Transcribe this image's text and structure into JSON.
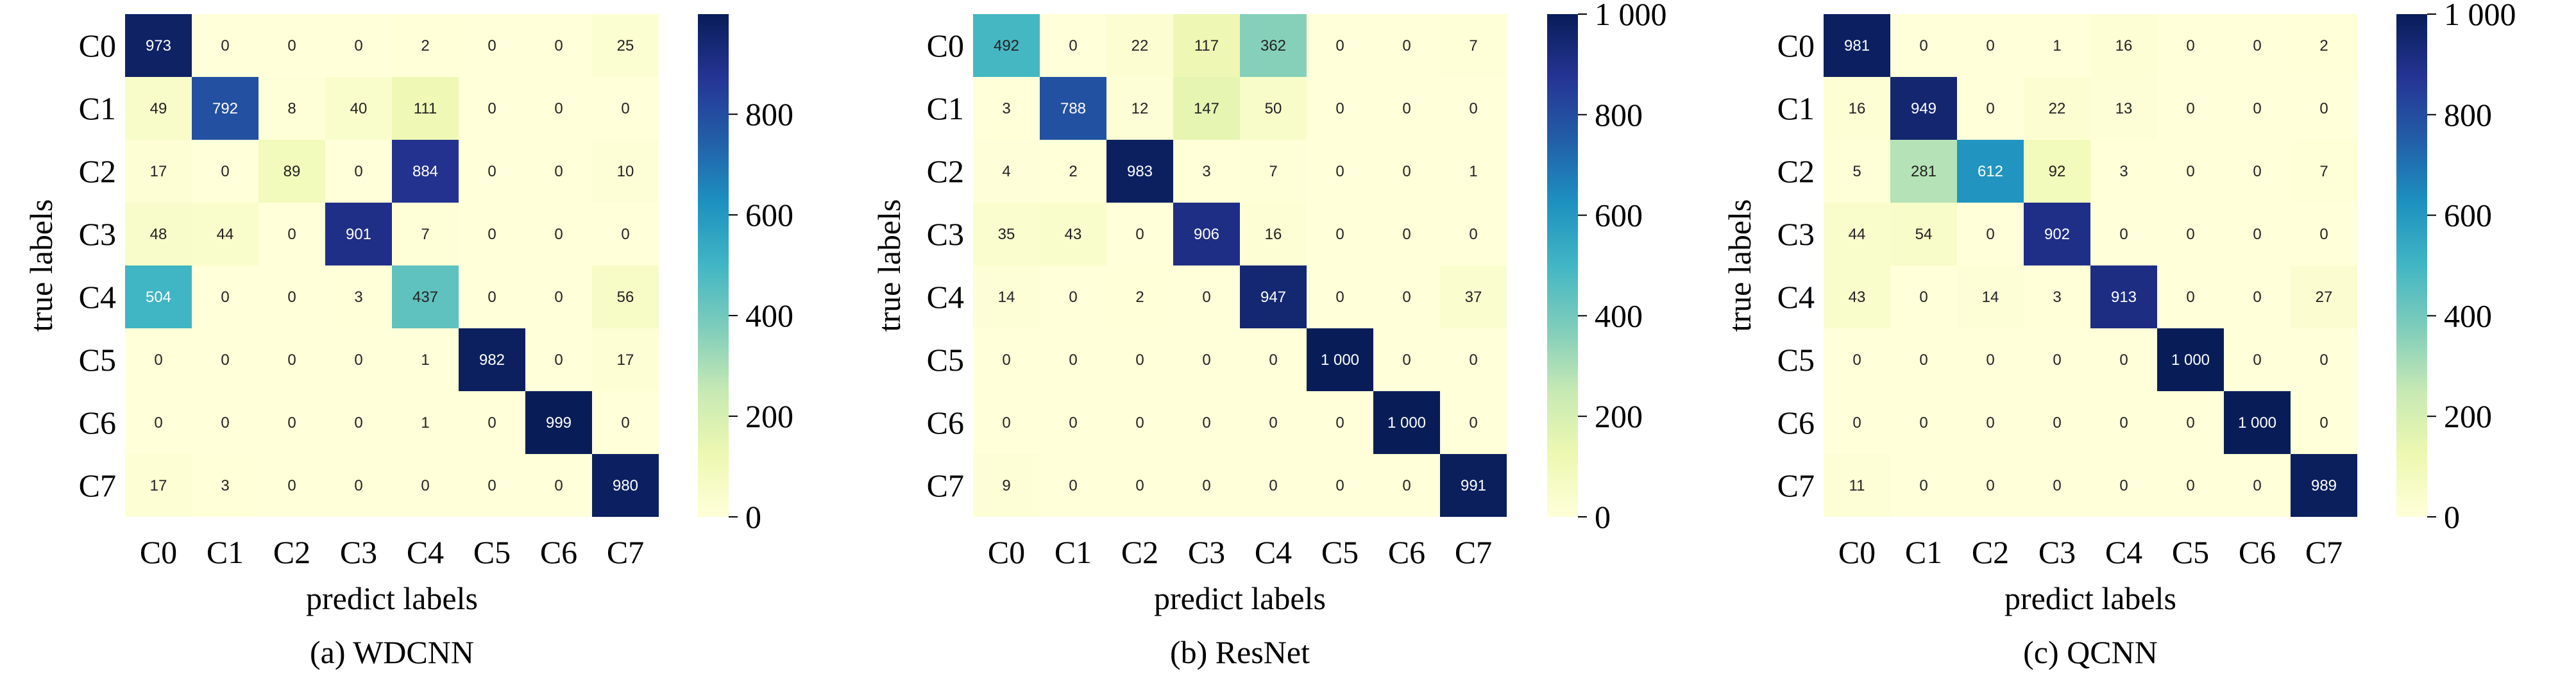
{
  "figure": {
    "colorscale": [
      "#ffffd9",
      "#edf8b1",
      "#c7e9b4",
      "#7fcdbb",
      "#41b6c4",
      "#1d91c0",
      "#225ea8",
      "#253494",
      "#081d58"
    ],
    "cell_text_dark": "#222222",
    "cell_text_light": "#ffffff"
  },
  "chart_data": [
    {
      "type": "heatmap",
      "caption": "(a) WDCNN",
      "xlabel": "predict labels",
      "ylabel": "true labels",
      "x_categories": [
        "C0",
        "C1",
        "C2",
        "C3",
        "C4",
        "C5",
        "C6",
        "C7"
      ],
      "y_categories": [
        "C0",
        "C1",
        "C2",
        "C3",
        "C4",
        "C5",
        "C6",
        "C7"
      ],
      "values": [
        [
          973,
          0,
          0,
          0,
          2,
          0,
          0,
          25
        ],
        [
          49,
          792,
          8,
          40,
          111,
          0,
          0,
          0
        ],
        [
          17,
          0,
          89,
          0,
          884,
          0,
          0,
          10
        ],
        [
          48,
          44,
          0,
          901,
          7,
          0,
          0,
          0
        ],
        [
          504,
          0,
          0,
          3,
          437,
          0,
          0,
          56
        ],
        [
          0,
          0,
          0,
          0,
          1,
          982,
          0,
          17
        ],
        [
          0,
          0,
          0,
          0,
          1,
          0,
          999,
          0
        ],
        [
          17,
          3,
          0,
          0,
          0,
          0,
          0,
          980
        ]
      ],
      "value_labels": [
        [
          "973",
          "0",
          "0",
          "0",
          "2",
          "0",
          "0",
          "25"
        ],
        [
          "49",
          "792",
          "8",
          "40",
          "111",
          "0",
          "0",
          "0"
        ],
        [
          "17",
          "0",
          "89",
          "0",
          "884",
          "0",
          "0",
          "10"
        ],
        [
          "48",
          "44",
          "0",
          "901",
          "7",
          "0",
          "0",
          "0"
        ],
        [
          "504",
          "0",
          "0",
          "3",
          "437",
          "0",
          "0",
          "56"
        ],
        [
          "0",
          "0",
          "0",
          "0",
          "1",
          "982",
          "0",
          "17"
        ],
        [
          "0",
          "0",
          "0",
          "0",
          "1",
          "0",
          "999",
          "0"
        ],
        [
          "17",
          "3",
          "0",
          "0",
          "0",
          "0",
          "0",
          "980"
        ]
      ],
      "colorbar": {
        "range": [
          0,
          999
        ],
        "ticks": [
          0,
          200,
          400,
          600,
          800
        ],
        "tick_labels": [
          "0",
          "200",
          "400",
          "600",
          "800"
        ]
      }
    },
    {
      "type": "heatmap",
      "caption": "(b) ResNet",
      "xlabel": "predict labels",
      "ylabel": "true labels",
      "x_categories": [
        "C0",
        "C1",
        "C2",
        "C3",
        "C4",
        "C5",
        "C6",
        "C7"
      ],
      "y_categories": [
        "C0",
        "C1",
        "C2",
        "C3",
        "C4",
        "C5",
        "C6",
        "C7"
      ],
      "values": [
        [
          492,
          0,
          22,
          117,
          362,
          0,
          0,
          7
        ],
        [
          3,
          788,
          12,
          147,
          50,
          0,
          0,
          0
        ],
        [
          4,
          2,
          983,
          3,
          7,
          0,
          0,
          1
        ],
        [
          35,
          43,
          0,
          906,
          16,
          0,
          0,
          0
        ],
        [
          14,
          0,
          2,
          0,
          947,
          0,
          0,
          37
        ],
        [
          0,
          0,
          0,
          0,
          0,
          1000,
          0,
          0
        ],
        [
          0,
          0,
          0,
          0,
          0,
          0,
          1000,
          0
        ],
        [
          9,
          0,
          0,
          0,
          0,
          0,
          0,
          991
        ]
      ],
      "value_labels": [
        [
          "492",
          "0",
          "22",
          "117",
          "362",
          "0",
          "0",
          "7"
        ],
        [
          "3",
          "788",
          "12",
          "147",
          "50",
          "0",
          "0",
          "0"
        ],
        [
          "4",
          "2",
          "983",
          "3",
          "7",
          "0",
          "0",
          "1"
        ],
        [
          "35",
          "43",
          "0",
          "906",
          "16",
          "0",
          "0",
          "0"
        ],
        [
          "14",
          "0",
          "2",
          "0",
          "947",
          "0",
          "0",
          "37"
        ],
        [
          "0",
          "0",
          "0",
          "0",
          "0",
          "1 000",
          "0",
          "0"
        ],
        [
          "0",
          "0",
          "0",
          "0",
          "0",
          "0",
          "1 000",
          "0"
        ],
        [
          "9",
          "0",
          "0",
          "0",
          "0",
          "0",
          "0",
          "991"
        ]
      ],
      "colorbar": {
        "range": [
          0,
          1000
        ],
        "ticks": [
          0,
          200,
          400,
          600,
          800,
          1000
        ],
        "tick_labels": [
          "0",
          "200",
          "400",
          "600",
          "800",
          "1 000"
        ]
      }
    },
    {
      "type": "heatmap",
      "caption": "(c) QCNN",
      "xlabel": "predict labels",
      "ylabel": "true labels",
      "x_categories": [
        "C0",
        "C1",
        "C2",
        "C3",
        "C4",
        "C5",
        "C6",
        "C7"
      ],
      "y_categories": [
        "C0",
        "C1",
        "C2",
        "C3",
        "C4",
        "C5",
        "C6",
        "C7"
      ],
      "values": [
        [
          981,
          0,
          0,
          1,
          16,
          0,
          0,
          2
        ],
        [
          16,
          949,
          0,
          22,
          13,
          0,
          0,
          0
        ],
        [
          5,
          281,
          612,
          92,
          3,
          0,
          0,
          7
        ],
        [
          44,
          54,
          0,
          902,
          0,
          0,
          0,
          0
        ],
        [
          43,
          0,
          14,
          3,
          913,
          0,
          0,
          27
        ],
        [
          0,
          0,
          0,
          0,
          0,
          1000,
          0,
          0
        ],
        [
          0,
          0,
          0,
          0,
          0,
          0,
          1000,
          0
        ],
        [
          11,
          0,
          0,
          0,
          0,
          0,
          0,
          989
        ]
      ],
      "value_labels": [
        [
          "981",
          "0",
          "0",
          "1",
          "16",
          "0",
          "0",
          "2"
        ],
        [
          "16",
          "949",
          "0",
          "22",
          "13",
          "0",
          "0",
          "0"
        ],
        [
          "5",
          "281",
          "612",
          "92",
          "3",
          "0",
          "0",
          "7"
        ],
        [
          "44",
          "54",
          "0",
          "902",
          "0",
          "0",
          "0",
          "0"
        ],
        [
          "43",
          "0",
          "14",
          "3",
          "913",
          "0",
          "0",
          "27"
        ],
        [
          "0",
          "0",
          "0",
          "0",
          "0",
          "1 000",
          "0",
          "0"
        ],
        [
          "0",
          "0",
          "0",
          "0",
          "0",
          "0",
          "1 000",
          "0"
        ],
        [
          "11",
          "0",
          "0",
          "0",
          "0",
          "0",
          "0",
          "989"
        ]
      ],
      "colorbar": {
        "range": [
          0,
          1000
        ],
        "ticks": [
          0,
          200,
          400,
          600,
          800,
          1000
        ],
        "tick_labels": [
          "0",
          "200",
          "400",
          "600",
          "800",
          "1 000"
        ]
      }
    }
  ]
}
